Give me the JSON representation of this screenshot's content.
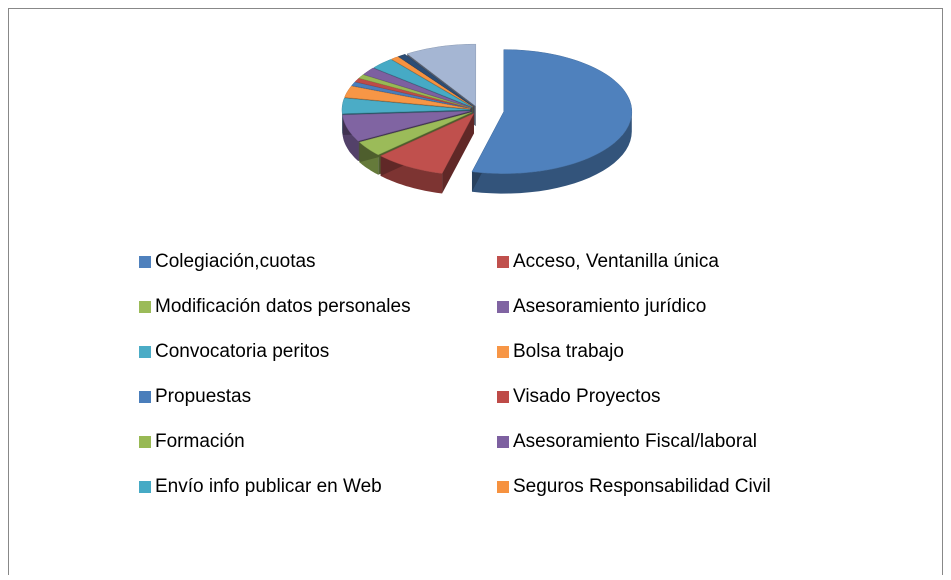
{
  "chart_data": {
    "type": "pie",
    "categories": [
      "Colegiación,cuotas",
      "Acceso, Ventanilla única",
      "Modificación datos personales",
      "Asesoramiento jurídico",
      "Convocatoria peritos",
      "Bolsa trabajo",
      "Propuestas",
      "Visado Proyectos",
      "Formación",
      "Asesoramiento Fiscal/laboral",
      "Envío info publicar en Web",
      "Seguros Responsabilidad Civil",
      null,
      null
    ],
    "values": [
      54,
      9,
      4,
      7,
      4,
      3,
      1,
      1,
      1,
      2,
      3,
      1,
      1,
      9
    ],
    "colors": [
      "#4f81bd",
      "#c0504d",
      "#9bbb59",
      "#8064a2",
      "#4bacc6",
      "#f79646",
      "#4a7ebb",
      "#be4b48",
      "#98b954",
      "#7d60a0",
      "#46aac5",
      "#f69240",
      "#2c4d75",
      "#a5b6d3"
    ]
  }
}
